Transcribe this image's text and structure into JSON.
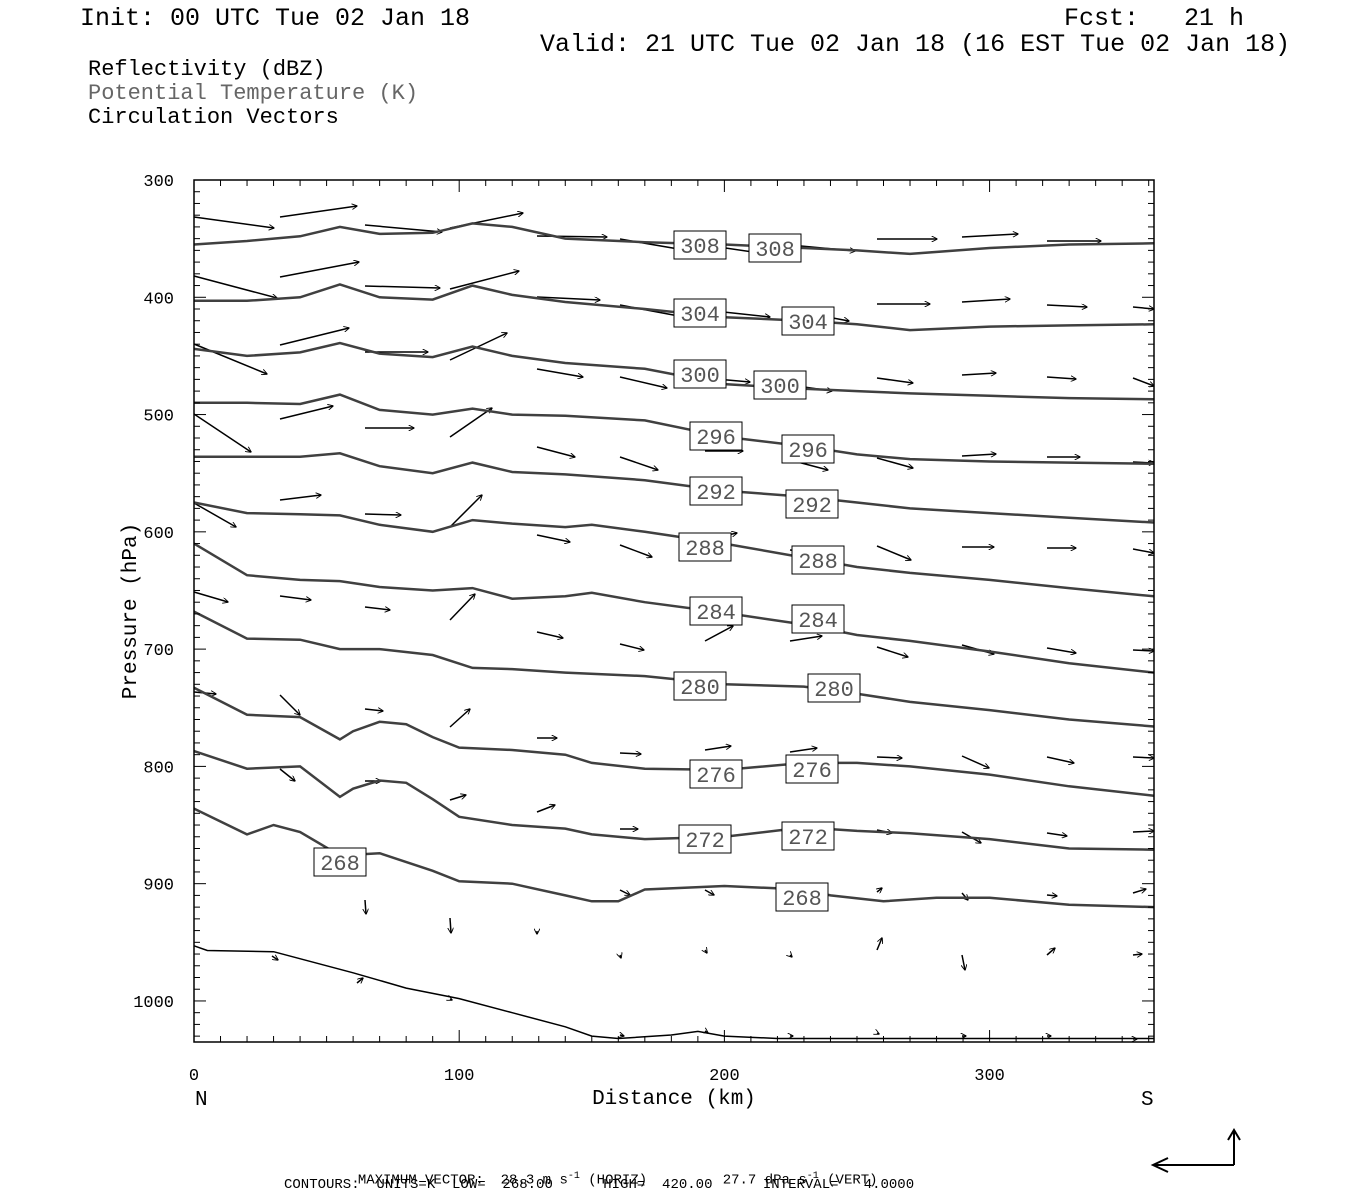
{
  "header": {
    "init": "Init: 00 UTC Tue 02 Jan 18",
    "fcst": "Fcst:   21 h",
    "valid": "Valid: 21 UTC Tue 02 Jan 18 (16 EST Tue 02 Jan 18)"
  },
  "legend": {
    "items": [
      {
        "label": "Reflectivity (dBZ)",
        "color": "#000000"
      },
      {
        "label": "Potential Temperature (K)",
        "color": "#666666"
      },
      {
        "label": "Circulation Vectors",
        "color": "#000000"
      }
    ]
  },
  "footer": {
    "max_vector_prefix": "MAXIMUM VECTOR:  28.3 m s",
    "max_vector_horiz": "(HORIZ)",
    "max_vector_vert_value": "27.7 dPa s",
    "max_vector_vert": "(VERT)",
    "exponent": "-1",
    "contours": "CONTOURS:  UNITS=K  LOW=  268.00      HIGH=  420.00      INTERVAL=   4.0000"
  },
  "chart_data": {
    "type": "line",
    "title": "Potential Temperature (K)",
    "xlabel": "Distance (km)",
    "ylabel": "Pressure (hPa)",
    "xlim": [
      0,
      362
    ],
    "ylim": [
      300,
      1035
    ],
    "y_inverted": true,
    "x_ticks": [
      "0",
      "100",
      "200",
      "300"
    ],
    "y_ticks": [
      "300",
      "400",
      "500",
      "600",
      "700",
      "800",
      "900",
      "1000"
    ],
    "x_end_labels": {
      "left": "N",
      "right": "S"
    },
    "contour_labels": [
      "308",
      "304",
      "300",
      "296",
      "292",
      "288",
      "284",
      "280",
      "276",
      "272",
      "268"
    ],
    "series": [
      {
        "name": "308",
        "x": [
          0,
          20,
          40,
          55,
          70,
          90,
          105,
          120,
          140,
          170,
          200,
          230,
          250,
          270,
          300,
          330,
          362
        ],
        "y": [
          355,
          352,
          348,
          340,
          346,
          345,
          337,
          340,
          350,
          353,
          355,
          358,
          360,
          363,
          358,
          355,
          354
        ]
      },
      {
        "name": "304",
        "x": [
          0,
          20,
          40,
          55,
          70,
          90,
          105,
          120,
          140,
          170,
          200,
          230,
          250,
          270,
          300,
          330,
          362
        ],
        "y": [
          403,
          403,
          400,
          389,
          400,
          402,
          390,
          398,
          404,
          410,
          417,
          420,
          423,
          428,
          425,
          424,
          423
        ]
      },
      {
        "name": "300",
        "x": [
          0,
          20,
          40,
          55,
          70,
          90,
          105,
          120,
          140,
          170,
          200,
          230,
          250,
          270,
          300,
          330,
          362
        ],
        "y": [
          444,
          450,
          447,
          439,
          448,
          451,
          442,
          450,
          456,
          461,
          474,
          478,
          480,
          482,
          484,
          486,
          487
        ]
      },
      {
        "name": "296",
        "x": [
          0,
          20,
          40,
          55,
          70,
          90,
          105,
          120,
          140,
          170,
          200,
          230,
          250,
          270,
          300,
          330,
          362
        ],
        "y": [
          490,
          490,
          491,
          483,
          496,
          500,
          495,
          500,
          501,
          505,
          519,
          527,
          534,
          538,
          540,
          541,
          542
        ]
      },
      {
        "name": "292",
        "x": [
          0,
          20,
          40,
          55,
          70,
          90,
          105,
          120,
          140,
          170,
          200,
          230,
          250,
          270,
          300,
          330,
          362
        ],
        "y": [
          536,
          536,
          536,
          533,
          544,
          550,
          541,
          549,
          551,
          556,
          565,
          570,
          575,
          580,
          584,
          588,
          592
        ]
      },
      {
        "name": "288",
        "x": [
          0,
          20,
          40,
          55,
          70,
          90,
          105,
          120,
          140,
          150,
          170,
          200,
          230,
          250,
          270,
          300,
          330,
          362
        ],
        "y": [
          575,
          584,
          585,
          586,
          594,
          600,
          590,
          593,
          596,
          594,
          600,
          610,
          622,
          630,
          635,
          641,
          648,
          655
        ]
      },
      {
        "name": "284",
        "x": [
          0,
          20,
          40,
          55,
          70,
          90,
          105,
          120,
          140,
          150,
          170,
          200,
          230,
          250,
          270,
          300,
          330,
          362
        ],
        "y": [
          610,
          637,
          641,
          642,
          647,
          650,
          648,
          657,
          655,
          652,
          660,
          669,
          679,
          688,
          693,
          702,
          712,
          720
        ]
      },
      {
        "name": "280",
        "x": [
          0,
          20,
          40,
          55,
          70,
          90,
          105,
          120,
          140,
          170,
          200,
          230,
          250,
          270,
          300,
          330,
          362
        ],
        "y": [
          668,
          691,
          692,
          700,
          700,
          705,
          716,
          717,
          720,
          723,
          730,
          732,
          738,
          745,
          752,
          760,
          766
        ]
      },
      {
        "name": "276",
        "x": [
          0,
          20,
          40,
          55,
          60,
          70,
          80,
          90,
          100,
          120,
          140,
          150,
          170,
          200,
          230,
          250,
          270,
          300,
          330,
          362
        ],
        "y": [
          733,
          756,
          758,
          777,
          770,
          762,
          764,
          775,
          784,
          786,
          790,
          797,
          802,
          803,
          797,
          797,
          800,
          807,
          817,
          825
        ]
      },
      {
        "name": "272",
        "x": [
          0,
          20,
          40,
          55,
          60,
          70,
          80,
          90,
          100,
          120,
          140,
          150,
          170,
          200,
          230,
          250,
          270,
          300,
          330,
          362
        ],
        "y": [
          787,
          802,
          800,
          826,
          819,
          812,
          814,
          828,
          843,
          850,
          853,
          858,
          862,
          860,
          852,
          855,
          857,
          862,
          870,
          871
        ]
      },
      {
        "name": "268",
        "x": [
          0,
          20,
          30,
          40,
          55,
          70,
          90,
          100,
          120,
          140,
          150,
          160,
          170,
          200,
          230,
          240,
          260,
          280,
          300,
          330,
          362
        ],
        "y": [
          836,
          858,
          850,
          856,
          876,
          874,
          889,
          898,
          900,
          910,
          915,
          915,
          905,
          902,
          905,
          910,
          915,
          912,
          912,
          918,
          920
        ]
      },
      {
        "name": "surface",
        "x": [
          0,
          5,
          30,
          60,
          80,
          100,
          120,
          140,
          150,
          160,
          180,
          190,
          200,
          220,
          260,
          300,
          362
        ],
        "y": [
          953,
          957,
          958,
          976,
          989,
          998,
          1010,
          1022,
          1030,
          1032,
          1029,
          1026,
          1030,
          1032,
          1032,
          1032,
          1032
        ]
      }
    ]
  }
}
